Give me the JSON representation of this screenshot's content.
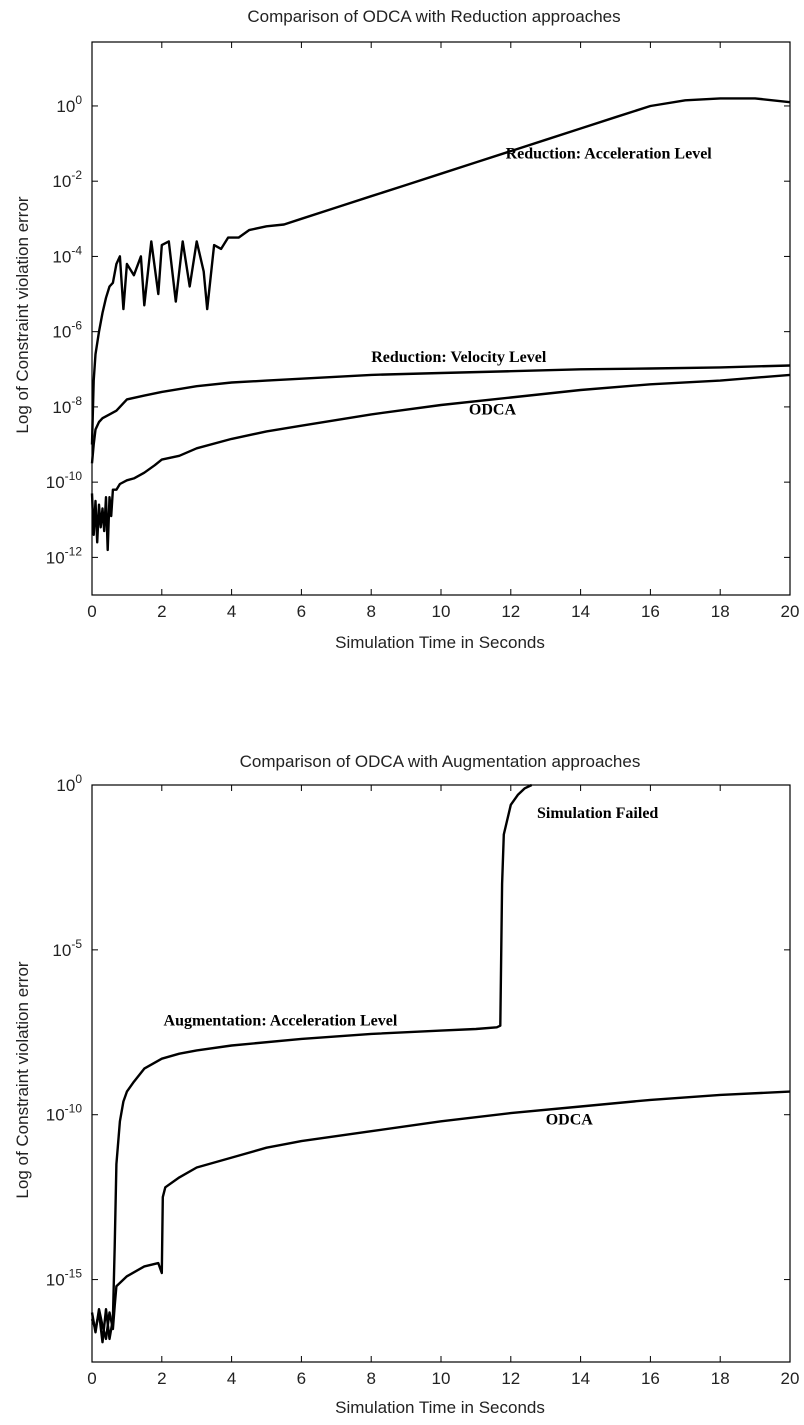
{
  "chart_data": [
    {
      "type": "line",
      "title": "Comparison of ODCA with Reduction approaches",
      "xlabel": "Simulation Time in Seconds",
      "ylabel": "Log of Constraint violation error",
      "y_scale": "log",
      "xlim": [
        0,
        20
      ],
      "ylim_exp": [
        -13,
        1.7
      ],
      "x_ticks": [
        "0",
        "2",
        "4",
        "6",
        "8",
        "10",
        "12",
        "14",
        "16",
        "18",
        "20"
      ],
      "y_ticks": [
        {
          "base": "10",
          "exp": "0"
        },
        {
          "base": "10",
          "exp": "-2"
        },
        {
          "base": "10",
          "exp": "-4"
        },
        {
          "base": "10",
          "exp": "-6"
        },
        {
          "base": "10",
          "exp": "-8"
        },
        {
          "base": "10",
          "exp": "-10"
        },
        {
          "base": "10",
          "exp": "-12"
        }
      ],
      "legend": "none",
      "grid": false,
      "series": [
        {
          "name": "Reduction: Acceleration Level",
          "x": [
            0.0,
            0.05,
            0.1,
            0.2,
            0.3,
            0.4,
            0.5,
            0.6,
            0.7,
            0.8,
            0.9,
            1.0,
            1.2,
            1.4,
            1.5,
            1.7,
            1.9,
            2.0,
            2.2,
            2.4,
            2.6,
            2.8,
            3.0,
            3.2,
            3.3,
            3.5,
            3.7,
            3.9,
            4.2,
            4.5,
            5.0,
            5.5,
            6.0,
            7.0,
            8.0,
            9.0,
            10.0,
            11.0,
            12.0,
            13.0,
            14.0,
            15.0,
            16.0,
            17.0,
            18.0,
            19.0,
            20.0
          ],
          "y_exp": [
            -9.0,
            -7.3,
            -6.6,
            -6.0,
            -5.5,
            -5.1,
            -4.8,
            -4.7,
            -4.2,
            -4.0,
            -5.4,
            -4.2,
            -4.5,
            -4.0,
            -5.3,
            -3.6,
            -5.0,
            -3.7,
            -3.6,
            -5.2,
            -3.6,
            -4.8,
            -3.6,
            -4.4,
            -5.4,
            -3.7,
            -3.8,
            -3.5,
            -3.5,
            -3.3,
            -3.2,
            -3.15,
            -3.0,
            -2.7,
            -2.4,
            -2.1,
            -1.8,
            -1.5,
            -1.2,
            -0.9,
            -0.6,
            -0.3,
            0.0,
            0.15,
            0.2,
            0.2,
            0.1
          ]
        },
        {
          "name": "Reduction: Velocity Level",
          "x": [
            0.0,
            0.05,
            0.1,
            0.2,
            0.3,
            0.5,
            0.7,
            1.0,
            1.5,
            2.0,
            3.0,
            4.0,
            5.0,
            6.0,
            8.0,
            10.0,
            12.0,
            14.0,
            16.0,
            18.0,
            20.0
          ],
          "y_exp": [
            -9.5,
            -9.0,
            -8.6,
            -8.4,
            -8.3,
            -8.2,
            -8.1,
            -7.8,
            -7.7,
            -7.6,
            -7.45,
            -7.35,
            -7.3,
            -7.25,
            -7.15,
            -7.1,
            -7.05,
            -7.0,
            -6.98,
            -6.95,
            -6.9
          ]
        },
        {
          "name": "ODCA",
          "x": [
            0.0,
            0.05,
            0.1,
            0.15,
            0.2,
            0.25,
            0.3,
            0.35,
            0.4,
            0.45,
            0.5,
            0.55,
            0.6,
            0.7,
            0.8,
            1.0,
            1.2,
            1.5,
            1.8,
            2.0,
            2.5,
            3.0,
            4.0,
            5.0,
            6.0,
            7.0,
            8.0,
            10.0,
            12.0,
            14.0,
            16.0,
            18.0,
            20.0
          ],
          "y_exp": [
            -10.3,
            -11.4,
            -10.5,
            -11.6,
            -10.6,
            -11.2,
            -10.7,
            -11.3,
            -10.4,
            -11.8,
            -10.4,
            -10.9,
            -10.2,
            -10.2,
            -10.05,
            -9.95,
            -9.9,
            -9.75,
            -9.55,
            -9.4,
            -9.3,
            -9.1,
            -8.85,
            -8.65,
            -8.5,
            -8.35,
            -8.2,
            -7.95,
            -7.75,
            -7.55,
            -7.4,
            -7.3,
            -7.15
          ]
        }
      ],
      "annotations": [
        {
          "text": "Reduction: Acceleration Level",
          "x": 11.85,
          "y_exp": -1.4
        },
        {
          "text": "Reduction: Velocity Level",
          "x": 8.0,
          "y_exp": -6.8
        },
        {
          "text": "ODCA",
          "x": 10.8,
          "y_exp": -8.2
        }
      ]
    },
    {
      "type": "line",
      "title": "Comparison of ODCA with Augmentation approaches",
      "xlabel": "Simulation Time in Seconds",
      "ylabel": "Log of Constraint violation error",
      "y_scale": "log",
      "xlim": [
        0,
        20
      ],
      "ylim_exp": [
        -17.5,
        0
      ],
      "x_ticks": [
        "0",
        "2",
        "4",
        "6",
        "8",
        "10",
        "12",
        "14",
        "16",
        "18",
        "20"
      ],
      "y_ticks": [
        {
          "base": "10",
          "exp": "0"
        },
        {
          "base": "10",
          "exp": "-5"
        },
        {
          "base": "10",
          "exp": "-10"
        },
        {
          "base": "10",
          "exp": "-15"
        }
      ],
      "legend": "none",
      "grid": false,
      "series": [
        {
          "name": "Augmentation: Acceleration Level",
          "x": [
            0.0,
            0.1,
            0.2,
            0.3,
            0.4,
            0.5,
            0.6,
            0.65,
            0.7,
            0.8,
            0.9,
            1.0,
            1.2,
            1.5,
            2.0,
            2.5,
            3.0,
            4.0,
            6.0,
            8.0,
            10.0,
            11.0,
            11.6,
            11.7,
            11.75,
            11.8,
            12.0,
            12.2,
            12.4,
            12.6
          ],
          "y_exp": [
            -16.2,
            -16.5,
            -16.0,
            -16.9,
            -15.9,
            -16.8,
            -16.2,
            -14.0,
            -11.5,
            -10.2,
            -9.6,
            -9.3,
            -9.0,
            -8.6,
            -8.3,
            -8.15,
            -8.05,
            -7.9,
            -7.7,
            -7.55,
            -7.45,
            -7.4,
            -7.35,
            -7.3,
            -3.0,
            -1.5,
            -0.6,
            -0.3,
            -0.1,
            0.0
          ]
        },
        {
          "name": "ODCA",
          "x": [
            0.0,
            0.1,
            0.2,
            0.3,
            0.4,
            0.5,
            0.6,
            0.65,
            0.7,
            1.0,
            1.5,
            1.9,
            2.0,
            2.03,
            2.1,
            2.5,
            3.0,
            4.0,
            5.0,
            6.0,
            8.0,
            10.0,
            12.0,
            14.0,
            16.0,
            18.0,
            20.0
          ],
          "y_exp": [
            -16.0,
            -16.6,
            -15.9,
            -16.4,
            -16.8,
            -16.0,
            -16.5,
            -15.8,
            -15.2,
            -14.9,
            -14.6,
            -14.5,
            -14.8,
            -12.5,
            -12.2,
            -11.9,
            -11.6,
            -11.3,
            -11.0,
            -10.8,
            -10.5,
            -10.2,
            -9.95,
            -9.75,
            -9.55,
            -9.4,
            -9.3
          ]
        }
      ],
      "annotations": [
        {
          "text": "Simulation Failed",
          "x": 12.75,
          "y_exp": -1.0
        },
        {
          "text": "Augmentation: Acceleration Level",
          "x": 2.05,
          "y_exp": -7.3
        },
        {
          "text": "ODCA",
          "x": 13.0,
          "y_exp": -10.3
        }
      ]
    }
  ]
}
